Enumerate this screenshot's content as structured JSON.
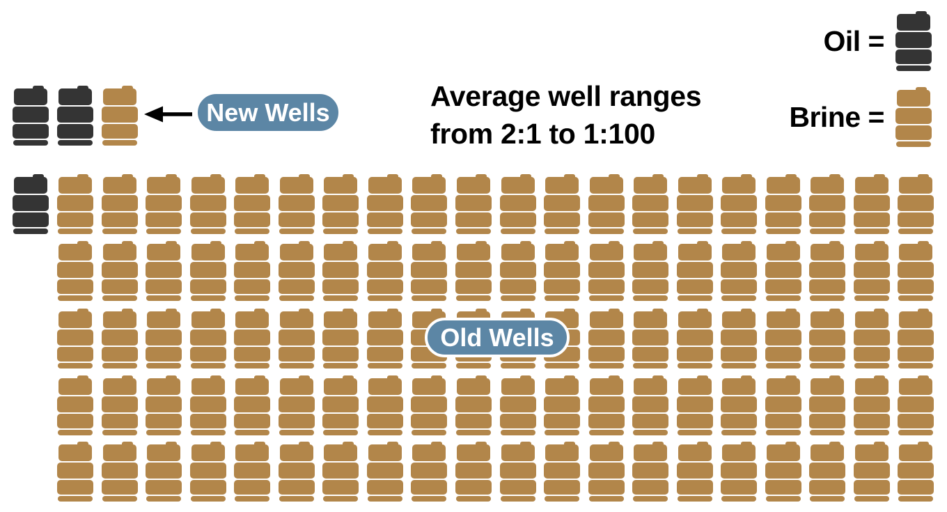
{
  "title": {
    "line1": "Average well ranges",
    "line2": "from 2:1 to 1:100"
  },
  "legend": {
    "oil_label": "Oil =",
    "brine_label": "Brine ="
  },
  "badges": {
    "new_wells": "New Wells",
    "old_wells": "Old Wells"
  },
  "colors": {
    "oil": "#343434",
    "brine": "#b2864a",
    "badge_fill": "#5c86a5",
    "badge_text": "#ffffff",
    "badge_border": "#ffffff",
    "arrow": "#000000",
    "text": "#000000",
    "background": "#ffffff"
  },
  "chart_data": {
    "type": "pictogram",
    "title": "Average well ranges from 2:1 to 1:100",
    "icon_unit": "barrel",
    "legend": [
      {
        "label": "Oil",
        "color": "#343434"
      },
      {
        "label": "Brine",
        "color": "#b2864a"
      }
    ],
    "series": [
      {
        "name": "New Wells",
        "oil": 2,
        "brine": 1,
        "ratio": "2:1"
      },
      {
        "name": "Old Wells",
        "oil": 1,
        "brine": 100,
        "ratio": "1:100"
      }
    ],
    "layout": {
      "legend_position": "top-right",
      "old_wells_grid": {
        "rows": 5,
        "brine_columns_per_row": 20,
        "oil_barrel_position": "row-1-left-of-grid"
      }
    }
  }
}
